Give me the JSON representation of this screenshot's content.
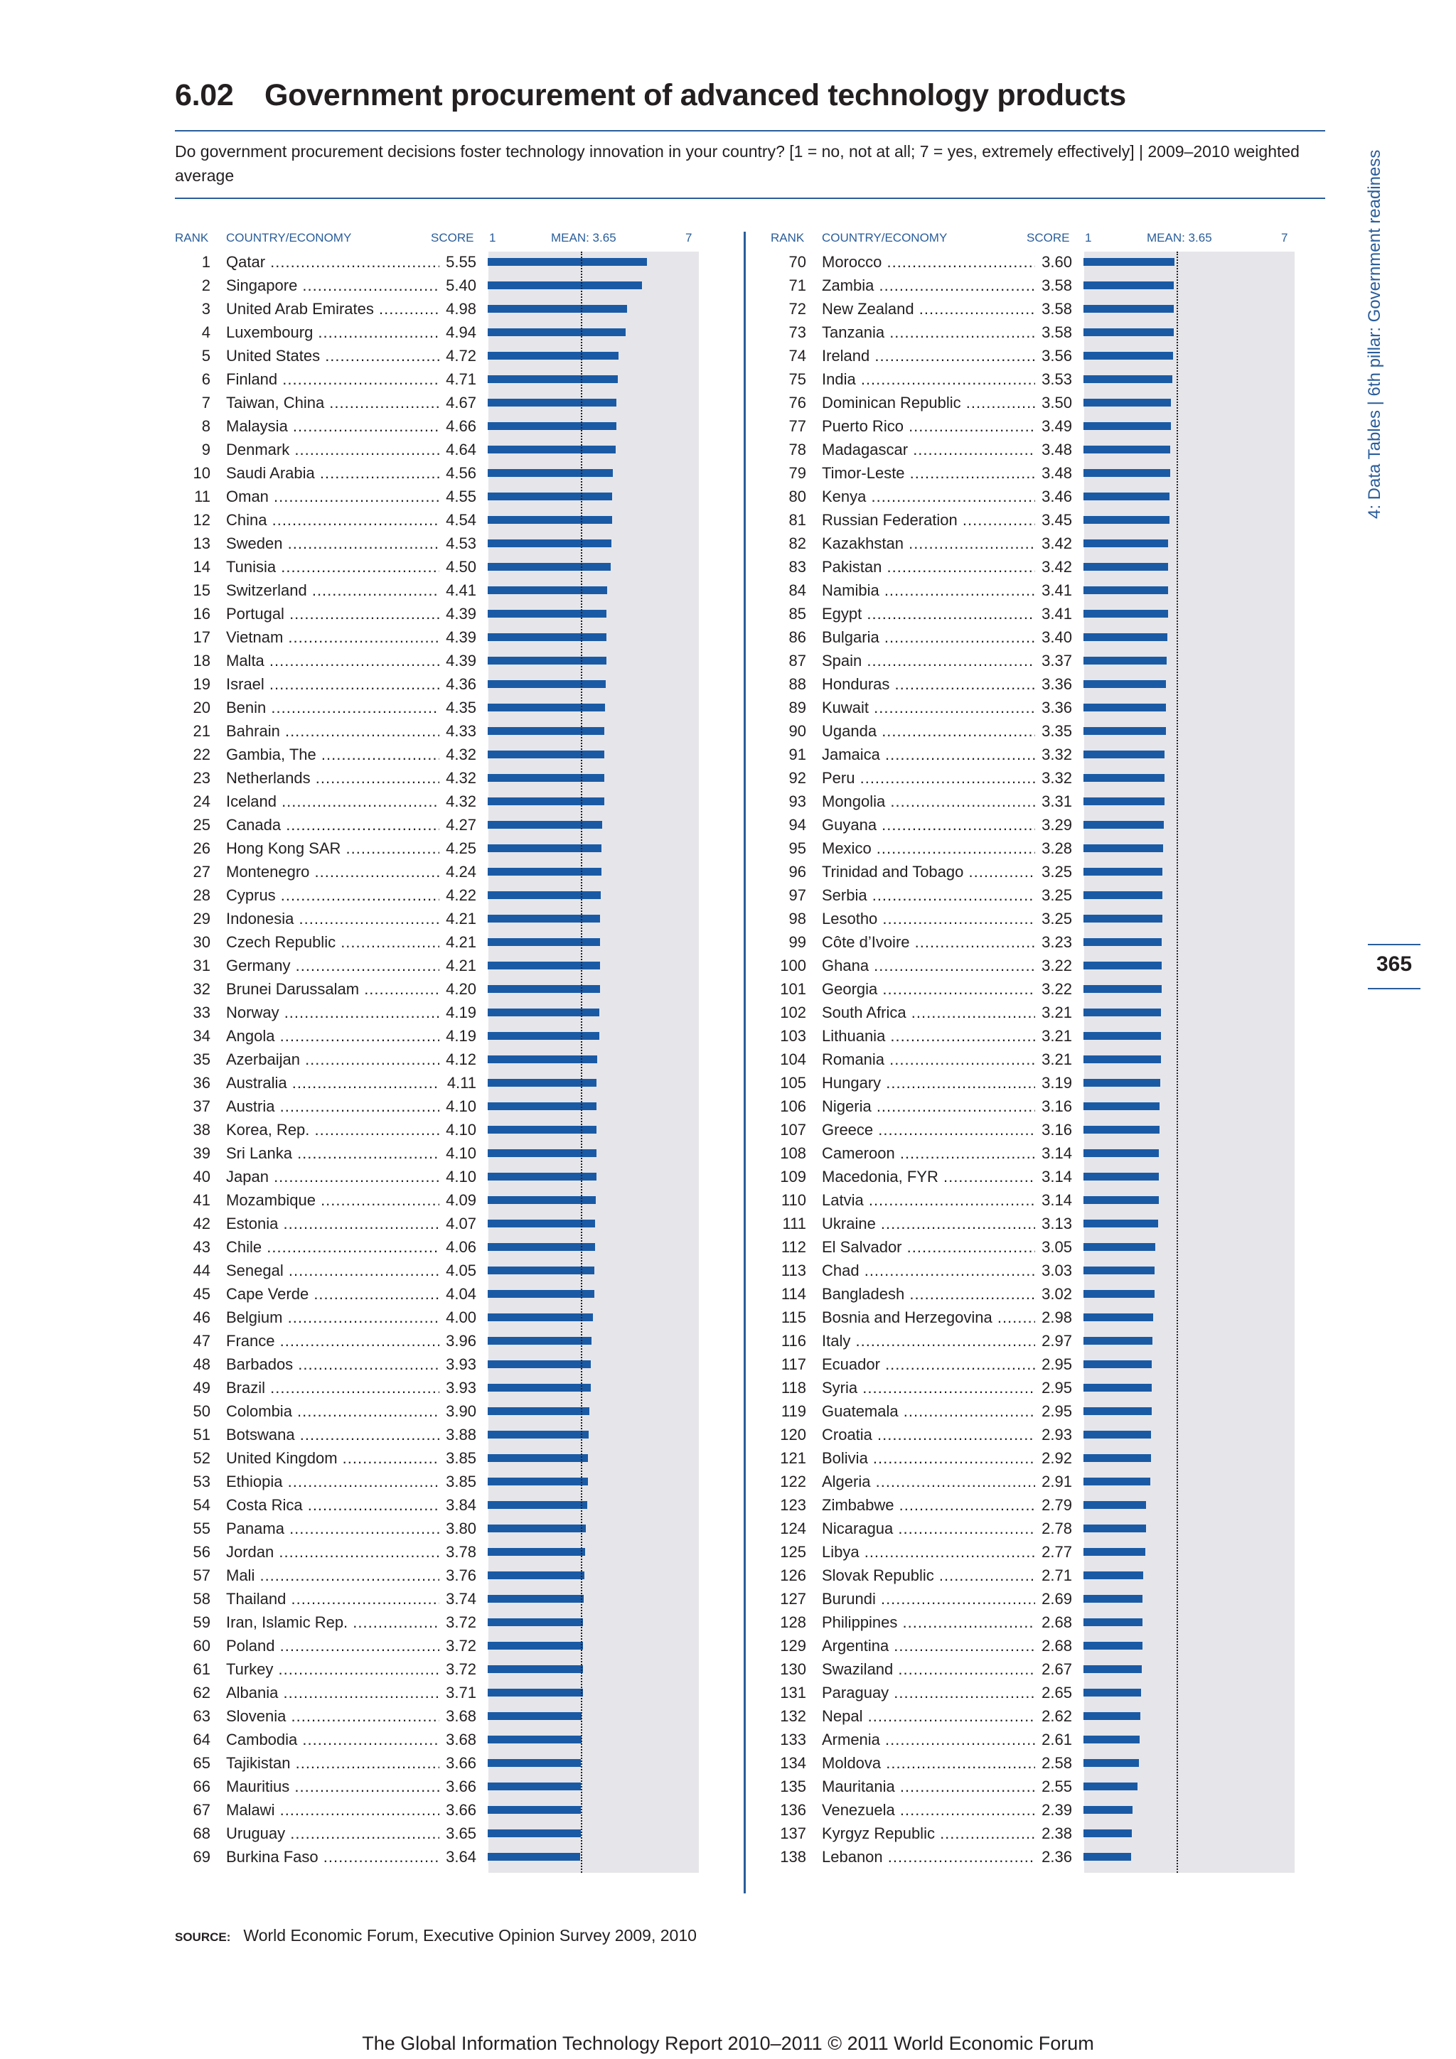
{
  "header": {
    "table_number": "6.02",
    "title": "Government procurement of advanced technology products",
    "question": "Do government procurement decisions foster technology innovation in your country? [1 = no, not at all; 7 = yes, extremely effectively] | 2009–2010 weighted average"
  },
  "columns": {
    "rank": "RANK",
    "country": "COUNTRY/ECONOMY",
    "score": "SCORE",
    "axis_min": "1",
    "mean_label": "MEAN: 3.65",
    "axis_max": "7"
  },
  "side": {
    "section": "4: Data Tables  |  6th pillar: Government readiness",
    "page_number": "365"
  },
  "source": {
    "label": "SOURCE:",
    "text": "World Economic Forum, Executive Opinion Survey 2009, 2010"
  },
  "footer": "The Global Information Technology Report 2010–2011 © 2011 World Economic Forum",
  "colors": {
    "bar": "#1a5aa5",
    "accent": "#2a5d9a",
    "track": "#e6e6ea"
  },
  "chart_data": {
    "type": "bar",
    "orientation": "horizontal",
    "title": "Government procurement of advanced technology products",
    "xlim": [
      1,
      7
    ],
    "mean": 3.65,
    "rows": [
      {
        "rank": "1",
        "country": "Qatar",
        "score": 5.55
      },
      {
        "rank": "2",
        "country": "Singapore",
        "score": 5.4
      },
      {
        "rank": "3",
        "country": "United Arab Emirates",
        "score": 4.98
      },
      {
        "rank": "4",
        "country": "Luxembourg",
        "score": 4.94
      },
      {
        "rank": "5",
        "country": "United States",
        "score": 4.72
      },
      {
        "rank": "6",
        "country": "Finland",
        "score": 4.71
      },
      {
        "rank": "7",
        "country": "Taiwan, China",
        "score": 4.67
      },
      {
        "rank": "8",
        "country": "Malaysia",
        "score": 4.66
      },
      {
        "rank": "9",
        "country": "Denmark",
        "score": 4.64
      },
      {
        "rank": "10",
        "country": "Saudi Arabia",
        "score": 4.56
      },
      {
        "rank": "11",
        "country": "Oman",
        "score": 4.55
      },
      {
        "rank": "12",
        "country": "China",
        "score": 4.54
      },
      {
        "rank": "13",
        "country": "Sweden",
        "score": 4.53
      },
      {
        "rank": "14",
        "country": "Tunisia",
        "score": 4.5
      },
      {
        "rank": "15",
        "country": "Switzerland",
        "score": 4.41
      },
      {
        "rank": "16",
        "country": "Portugal",
        "score": 4.39
      },
      {
        "rank": "17",
        "country": "Vietnam",
        "score": 4.39
      },
      {
        "rank": "18",
        "country": "Malta",
        "score": 4.39
      },
      {
        "rank": "19",
        "country": "Israel",
        "score": 4.36
      },
      {
        "rank": "20",
        "country": "Benin",
        "score": 4.35
      },
      {
        "rank": "21",
        "country": "Bahrain",
        "score": 4.33
      },
      {
        "rank": "22",
        "country": "Gambia, The",
        "score": 4.32
      },
      {
        "rank": "23",
        "country": "Netherlands",
        "score": 4.32
      },
      {
        "rank": "24",
        "country": "Iceland",
        "score": 4.32
      },
      {
        "rank": "25",
        "country": "Canada",
        "score": 4.27
      },
      {
        "rank": "26",
        "country": "Hong Kong SAR",
        "score": 4.25
      },
      {
        "rank": "27",
        "country": "Montenegro",
        "score": 4.24
      },
      {
        "rank": "28",
        "country": "Cyprus",
        "score": 4.22
      },
      {
        "rank": "29",
        "country": "Indonesia",
        "score": 4.21
      },
      {
        "rank": "30",
        "country": "Czech Republic",
        "score": 4.21
      },
      {
        "rank": "31",
        "country": "Germany",
        "score": 4.21
      },
      {
        "rank": "32",
        "country": "Brunei Darussalam",
        "score": 4.2
      },
      {
        "rank": "33",
        "country": "Norway",
        "score": 4.19
      },
      {
        "rank": "34",
        "country": "Angola",
        "score": 4.19
      },
      {
        "rank": "35",
        "country": "Azerbaijan",
        "score": 4.12
      },
      {
        "rank": "36",
        "country": "Australia",
        "score": 4.11
      },
      {
        "rank": "37",
        "country": "Austria",
        "score": 4.1
      },
      {
        "rank": "38",
        "country": "Korea, Rep.",
        "score": 4.1
      },
      {
        "rank": "39",
        "country": "Sri Lanka",
        "score": 4.1
      },
      {
        "rank": "40",
        "country": "Japan",
        "score": 4.1
      },
      {
        "rank": "41",
        "country": "Mozambique",
        "score": 4.09
      },
      {
        "rank": "42",
        "country": "Estonia",
        "score": 4.07
      },
      {
        "rank": "43",
        "country": "Chile",
        "score": 4.06
      },
      {
        "rank": "44",
        "country": "Senegal",
        "score": 4.05
      },
      {
        "rank": "45",
        "country": "Cape Verde",
        "score": 4.04
      },
      {
        "rank": "46",
        "country": "Belgium",
        "score": 4.0
      },
      {
        "rank": "47",
        "country": "France",
        "score": 3.96
      },
      {
        "rank": "48",
        "country": "Barbados",
        "score": 3.93
      },
      {
        "rank": "49",
        "country": "Brazil",
        "score": 3.93
      },
      {
        "rank": "50",
        "country": "Colombia",
        "score": 3.9
      },
      {
        "rank": "51",
        "country": "Botswana",
        "score": 3.88
      },
      {
        "rank": "52",
        "country": "United Kingdom",
        "score": 3.85
      },
      {
        "rank": "53",
        "country": "Ethiopia",
        "score": 3.85
      },
      {
        "rank": "54",
        "country": "Costa Rica",
        "score": 3.84
      },
      {
        "rank": "55",
        "country": "Panama",
        "score": 3.8
      },
      {
        "rank": "56",
        "country": "Jordan",
        "score": 3.78
      },
      {
        "rank": "57",
        "country": "Mali",
        "score": 3.76
      },
      {
        "rank": "58",
        "country": "Thailand",
        "score": 3.74
      },
      {
        "rank": "59",
        "country": "Iran, Islamic Rep.",
        "score": 3.72
      },
      {
        "rank": "60",
        "country": "Poland",
        "score": 3.72
      },
      {
        "rank": "61",
        "country": "Turkey",
        "score": 3.72
      },
      {
        "rank": "62",
        "country": "Albania",
        "score": 3.71
      },
      {
        "rank": "63",
        "country": "Slovenia",
        "score": 3.68
      },
      {
        "rank": "64",
        "country": "Cambodia",
        "score": 3.68
      },
      {
        "rank": "65",
        "country": "Tajikistan",
        "score": 3.66
      },
      {
        "rank": "66",
        "country": "Mauritius",
        "score": 3.66
      },
      {
        "rank": "67",
        "country": "Malawi",
        "score": 3.66
      },
      {
        "rank": "68",
        "country": "Uruguay",
        "score": 3.65
      },
      {
        "rank": "69",
        "country": "Burkina Faso",
        "score": 3.64
      },
      {
        "rank": "70",
        "country": "Morocco",
        "score": 3.6
      },
      {
        "rank": "71",
        "country": "Zambia",
        "score": 3.58
      },
      {
        "rank": "72",
        "country": "New Zealand",
        "score": 3.58
      },
      {
        "rank": "73",
        "country": "Tanzania",
        "score": 3.58
      },
      {
        "rank": "74",
        "country": "Ireland",
        "score": 3.56
      },
      {
        "rank": "75",
        "country": "India",
        "score": 3.53
      },
      {
        "rank": "76",
        "country": "Dominican Republic",
        "score": 3.5
      },
      {
        "rank": "77",
        "country": "Puerto Rico",
        "score": 3.49
      },
      {
        "rank": "78",
        "country": "Madagascar",
        "score": 3.48
      },
      {
        "rank": "79",
        "country": "Timor-Leste",
        "score": 3.48
      },
      {
        "rank": "80",
        "country": "Kenya",
        "score": 3.46
      },
      {
        "rank": "81",
        "country": "Russian Federation",
        "score": 3.45
      },
      {
        "rank": "82",
        "country": "Kazakhstan",
        "score": 3.42
      },
      {
        "rank": "83",
        "country": "Pakistan",
        "score": 3.42
      },
      {
        "rank": "84",
        "country": "Namibia",
        "score": 3.41
      },
      {
        "rank": "85",
        "country": "Egypt",
        "score": 3.41
      },
      {
        "rank": "86",
        "country": "Bulgaria",
        "score": 3.4
      },
      {
        "rank": "87",
        "country": "Spain",
        "score": 3.37
      },
      {
        "rank": "88",
        "country": "Honduras",
        "score": 3.36
      },
      {
        "rank": "89",
        "country": "Kuwait",
        "score": 3.36
      },
      {
        "rank": "90",
        "country": "Uganda",
        "score": 3.35
      },
      {
        "rank": "91",
        "country": "Jamaica",
        "score": 3.32
      },
      {
        "rank": "92",
        "country": "Peru",
        "score": 3.32
      },
      {
        "rank": "93",
        "country": "Mongolia",
        "score": 3.31
      },
      {
        "rank": "94",
        "country": "Guyana",
        "score": 3.29
      },
      {
        "rank": "95",
        "country": "Mexico",
        "score": 3.28
      },
      {
        "rank": "96",
        "country": "Trinidad and Tobago",
        "score": 3.25
      },
      {
        "rank": "97",
        "country": "Serbia",
        "score": 3.25
      },
      {
        "rank": "98",
        "country": "Lesotho",
        "score": 3.25
      },
      {
        "rank": "99",
        "country": "Côte d’Ivoire",
        "score": 3.23
      },
      {
        "rank": "100",
        "country": "Ghana",
        "score": 3.22
      },
      {
        "rank": "101",
        "country": "Georgia",
        "score": 3.22
      },
      {
        "rank": "102",
        "country": "South Africa",
        "score": 3.21
      },
      {
        "rank": "103",
        "country": "Lithuania",
        "score": 3.21
      },
      {
        "rank": "104",
        "country": "Romania",
        "score": 3.21
      },
      {
        "rank": "105",
        "country": "Hungary",
        "score": 3.19
      },
      {
        "rank": "106",
        "country": "Nigeria",
        "score": 3.16
      },
      {
        "rank": "107",
        "country": "Greece",
        "score": 3.16
      },
      {
        "rank": "108",
        "country": "Cameroon",
        "score": 3.14
      },
      {
        "rank": "109",
        "country": "Macedonia, FYR",
        "score": 3.14
      },
      {
        "rank": "110",
        "country": "Latvia",
        "score": 3.14
      },
      {
        "rank": "111",
        "country": "Ukraine",
        "score": 3.13
      },
      {
        "rank": "112",
        "country": "El Salvador",
        "score": 3.05
      },
      {
        "rank": "113",
        "country": "Chad",
        "score": 3.03
      },
      {
        "rank": "114",
        "country": "Bangladesh",
        "score": 3.02
      },
      {
        "rank": "115",
        "country": "Bosnia and Herzegovina",
        "score": 2.98
      },
      {
        "rank": "116",
        "country": "Italy",
        "score": 2.97
      },
      {
        "rank": "117",
        "country": "Ecuador",
        "score": 2.95
      },
      {
        "rank": "118",
        "country": "Syria",
        "score": 2.95
      },
      {
        "rank": "119",
        "country": "Guatemala",
        "score": 2.95
      },
      {
        "rank": "120",
        "country": "Croatia",
        "score": 2.93
      },
      {
        "rank": "121",
        "country": "Bolivia",
        "score": 2.92
      },
      {
        "rank": "122",
        "country": "Algeria",
        "score": 2.91
      },
      {
        "rank": "123",
        "country": "Zimbabwe",
        "score": 2.79
      },
      {
        "rank": "124",
        "country": "Nicaragua",
        "score": 2.78
      },
      {
        "rank": "125",
        "country": "Libya",
        "score": 2.77
      },
      {
        "rank": "126",
        "country": "Slovak Republic",
        "score": 2.71
      },
      {
        "rank": "127",
        "country": "Burundi",
        "score": 2.69
      },
      {
        "rank": "128",
        "country": "Philippines",
        "score": 2.68
      },
      {
        "rank": "129",
        "country": "Argentina",
        "score": 2.68
      },
      {
        "rank": "130",
        "country": "Swaziland",
        "score": 2.67
      },
      {
        "rank": "131",
        "country": "Paraguay",
        "score": 2.65
      },
      {
        "rank": "132",
        "country": "Nepal",
        "score": 2.62
      },
      {
        "rank": "133",
        "country": "Armenia",
        "score": 2.61
      },
      {
        "rank": "134",
        "country": "Moldova",
        "score": 2.58
      },
      {
        "rank": "135",
        "country": "Mauritania",
        "score": 2.55
      },
      {
        "rank": "136",
        "country": "Venezuela",
        "score": 2.39
      },
      {
        "rank": "137",
        "country": "Kyrgyz Republic",
        "score": 2.38
      },
      {
        "rank": "138",
        "country": "Lebanon",
        "score": 2.36
      }
    ]
  }
}
